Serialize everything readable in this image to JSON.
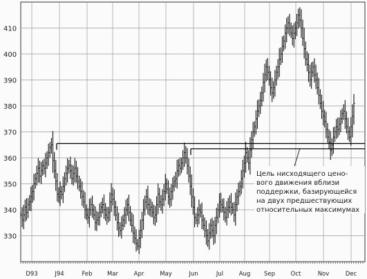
{
  "chart_data": {
    "type": "ohlc",
    "title": "",
    "xlabel": "",
    "ylabel": "",
    "ylim": [
      320,
      420
    ],
    "y_ticks": [
      330,
      340,
      350,
      360,
      370,
      380,
      390,
      400,
      410
    ],
    "x_ticks": [
      "D93",
      "J94",
      "Feb",
      "Mar",
      "Apr",
      "May",
      "Jun",
      "Jul",
      "Aug",
      "Sep",
      "Oct",
      "Nov",
      "Dec"
    ],
    "grid": true,
    "closes": [
      338,
      336,
      338,
      341,
      339,
      342,
      343,
      345,
      347,
      350,
      352,
      354,
      356,
      353,
      355,
      357,
      356,
      358,
      360,
      362,
      364,
      365,
      359,
      355,
      351,
      346,
      345,
      347,
      346,
      349,
      352,
      354,
      356,
      357,
      355,
      352,
      354,
      356,
      353,
      351,
      349,
      347,
      345,
      343,
      340,
      338,
      337,
      340,
      342,
      340,
      338,
      335,
      336,
      337,
      339,
      341,
      342,
      340,
      338,
      337,
      339,
      343,
      346,
      344,
      341,
      338,
      335,
      333,
      332,
      334,
      336,
      338,
      340,
      342,
      339,
      336,
      334,
      331,
      329,
      327,
      326,
      329,
      332,
      336,
      340,
      343,
      345,
      342,
      340,
      341,
      339,
      337,
      338,
      342,
      346,
      343,
      342,
      344,
      347,
      350,
      348,
      345,
      344,
      347,
      349,
      351,
      352,
      355,
      357,
      356,
      358,
      360,
      362,
      360,
      357,
      353,
      349,
      345,
      341,
      337,
      336,
      338,
      340,
      339,
      336,
      334,
      332,
      330,
      328,
      331,
      334,
      332,
      330,
      334,
      337,
      340,
      343,
      342,
      341,
      339,
      337,
      340,
      341,
      343,
      341,
      340,
      338,
      342,
      345,
      347,
      349,
      352,
      355,
      358,
      362,
      360,
      358,
      363,
      367,
      370,
      372,
      375,
      378,
      380,
      382,
      385,
      389,
      392,
      395,
      393,
      390,
      387,
      385,
      387,
      390,
      393,
      395,
      398,
      400,
      403,
      405,
      408,
      410,
      412,
      410,
      408,
      406,
      408,
      410,
      412,
      415,
      413,
      410,
      406,
      402,
      398,
      396,
      393,
      390,
      393,
      395,
      392,
      390,
      387,
      384,
      381,
      378,
      376,
      374,
      371,
      368,
      366,
      363,
      365,
      368,
      370,
      372,
      371,
      373,
      375,
      377,
      378,
      375,
      372,
      370,
      368,
      372,
      376,
      381
    ],
    "support_lines": [
      {
        "value": 365.5,
        "from": "J94",
        "to": "Dec"
      },
      {
        "value": 363.5,
        "from": "Jun",
        "to": "Dec"
      }
    ]
  },
  "annotation": {
    "lines": [
      "Цель нисходящего цено-",
      "вого движения вблизи",
      "поддержки, базирующейся",
      "на двух предшествующих",
      "относительных максимумах"
    ]
  }
}
